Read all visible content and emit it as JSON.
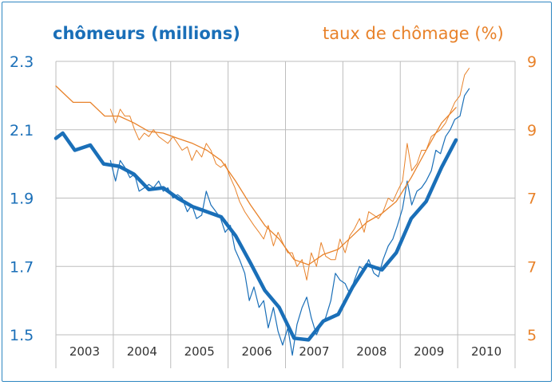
{
  "chart_data": {
    "type": "line",
    "title_left": "chômeurs (millions)",
    "title_right": "taux de chômage (%)",
    "x_tick_labels": [
      "2003",
      "2004",
      "2005",
      "2006",
      "2007",
      "2008",
      "2009",
      "2010"
    ],
    "y_left_ticks": [
      "2.3",
      "2.1",
      "1.9",
      "1.7",
      "1.5"
    ],
    "y_right_ticks": [
      "9",
      "9",
      "7",
      "7",
      "5"
    ],
    "ylim_left": [
      1.5,
      2.3
    ],
    "xlim": [
      2003.0,
      2011.0
    ],
    "grid": true,
    "colors": {
      "left_axis": "#1a6fb8",
      "right_axis": "#e8822a",
      "frame": "#2e86c1"
    },
    "series": [
      {
        "axis": "left",
        "color": "#1a6fb8",
        "width": 4.5,
        "x": [
          2003.0,
          2003.12,
          2003.33,
          2003.6,
          2003.83,
          2004.1,
          2004.36,
          2004.62,
          2004.87,
          2005.12,
          2005.38,
          2005.63,
          2005.88,
          2006.13,
          2006.39,
          2006.64,
          2006.89,
          2007.15,
          2007.4,
          2007.66,
          2007.92,
          2008.17,
          2008.42,
          2008.68,
          2008.93,
          2009.19,
          2009.45,
          2009.72,
          2009.97
        ],
        "values": [
          2.075,
          2.09,
          2.04,
          2.055,
          2.0,
          1.993,
          1.97,
          1.925,
          1.93,
          1.9,
          1.875,
          1.86,
          1.845,
          1.79,
          1.71,
          1.63,
          1.58,
          1.49,
          1.485,
          1.54,
          1.56,
          1.64,
          1.705,
          1.69,
          1.74,
          1.84,
          1.89,
          1.99,
          2.07
        ]
      },
      {
        "axis": "left",
        "color": "#1a6fb8",
        "width": 1.2,
        "x": [
          2003.95,
          2004.04,
          2004.12,
          2004.2,
          2004.29,
          2004.37,
          2004.45,
          2004.54,
          2004.62,
          2004.7,
          2004.79,
          2004.87,
          2004.95,
          2005.04,
          2005.12,
          2005.2,
          2005.29,
          2005.37,
          2005.45,
          2005.54,
          2005.62,
          2005.7,
          2005.79,
          2005.87,
          2005.95,
          2006.04,
          2006.12,
          2006.2,
          2006.29,
          2006.37,
          2006.45,
          2006.54,
          2006.62,
          2006.7,
          2006.79,
          2006.87,
          2006.95,
          2007.04,
          2007.12,
          2007.2,
          2007.29,
          2007.37,
          2007.45,
          2007.54,
          2007.62,
          2007.7,
          2007.79,
          2007.87,
          2007.95,
          2008.04,
          2008.12,
          2008.2,
          2008.29,
          2008.37,
          2008.45,
          2008.54,
          2008.62,
          2008.7,
          2008.79,
          2008.87,
          2008.95,
          2009.04,
          2009.12,
          2009.2,
          2009.29,
          2009.37,
          2009.45,
          2009.54,
          2009.62,
          2009.7,
          2009.79,
          2009.87,
          2009.95,
          2010.04,
          2010.12,
          2010.2
        ],
        "values": [
          2.01,
          1.95,
          2.01,
          1.99,
          1.96,
          1.97,
          1.92,
          1.93,
          1.94,
          1.93,
          1.95,
          1.92,
          1.93,
          1.9,
          1.91,
          1.9,
          1.86,
          1.88,
          1.84,
          1.85,
          1.92,
          1.88,
          1.86,
          1.84,
          1.8,
          1.82,
          1.75,
          1.72,
          1.68,
          1.6,
          1.64,
          1.58,
          1.6,
          1.52,
          1.58,
          1.51,
          1.47,
          1.52,
          1.44,
          1.53,
          1.58,
          1.61,
          1.55,
          1.5,
          1.53,
          1.55,
          1.6,
          1.68,
          1.66,
          1.65,
          1.62,
          1.66,
          1.7,
          1.69,
          1.72,
          1.68,
          1.67,
          1.72,
          1.76,
          1.78,
          1.82,
          1.87,
          1.95,
          1.88,
          1.92,
          1.93,
          1.95,
          1.98,
          2.04,
          2.03,
          2.08,
          2.1,
          2.13,
          2.14,
          2.2,
          2.22
        ]
      },
      {
        "axis": "right",
        "color": "#e8822a",
        "width": 1.3,
        "x": [
          2003.0,
          2003.3,
          2003.6,
          2003.85,
          2004.1,
          2004.36,
          2004.62,
          2004.87,
          2005.12,
          2005.38,
          2005.63,
          2005.88,
          2006.13,
          2006.39,
          2006.64,
          2006.89,
          2007.15,
          2007.4,
          2007.66,
          2007.92,
          2008.17,
          2008.42,
          2008.68,
          2008.93,
          2009.19,
          2009.45,
          2009.72,
          2009.97
        ],
        "values": [
          2.228,
          2.18,
          2.18,
          2.14,
          2.14,
          2.12,
          2.095,
          2.09,
          2.075,
          2.06,
          2.04,
          2.01,
          1.95,
          1.88,
          1.82,
          1.78,
          1.72,
          1.705,
          1.735,
          1.75,
          1.79,
          1.83,
          1.855,
          1.89,
          1.96,
          2.04,
          2.12,
          2.165
        ]
      },
      {
        "axis": "right",
        "color": "#e8822a",
        "width": 1.0,
        "x": [
          2003.95,
          2004.04,
          2004.12,
          2004.2,
          2004.29,
          2004.37,
          2004.45,
          2004.54,
          2004.62,
          2004.7,
          2004.79,
          2004.87,
          2004.95,
          2005.04,
          2005.12,
          2005.2,
          2005.29,
          2005.37,
          2005.45,
          2005.54,
          2005.62,
          2005.7,
          2005.79,
          2005.87,
          2005.95,
          2006.04,
          2006.12,
          2006.2,
          2006.29,
          2006.37,
          2006.45,
          2006.54,
          2006.62,
          2006.7,
          2006.79,
          2006.87,
          2006.95,
          2007.04,
          2007.12,
          2007.2,
          2007.29,
          2007.37,
          2007.45,
          2007.54,
          2007.62,
          2007.7,
          2007.79,
          2007.87,
          2007.95,
          2008.04,
          2008.12,
          2008.2,
          2008.29,
          2008.37,
          2008.45,
          2008.54,
          2008.62,
          2008.7,
          2008.79,
          2008.87,
          2008.95,
          2009.04,
          2009.12,
          2009.2,
          2009.29,
          2009.37,
          2009.45,
          2009.54,
          2009.62,
          2009.7,
          2009.79,
          2009.87,
          2009.95,
          2010.04,
          2010.12,
          2010.2
        ],
        "values": [
          2.16,
          2.12,
          2.16,
          2.14,
          2.14,
          2.1,
          2.07,
          2.09,
          2.08,
          2.1,
          2.08,
          2.07,
          2.06,
          2.08,
          2.06,
          2.04,
          2.05,
          2.01,
          2.04,
          2.02,
          2.06,
          2.04,
          2.0,
          1.99,
          2.0,
          1.96,
          1.93,
          1.89,
          1.86,
          1.84,
          1.82,
          1.8,
          1.78,
          1.82,
          1.76,
          1.8,
          1.77,
          1.74,
          1.74,
          1.7,
          1.72,
          1.66,
          1.74,
          1.7,
          1.77,
          1.73,
          1.72,
          1.72,
          1.78,
          1.74,
          1.79,
          1.81,
          1.84,
          1.8,
          1.86,
          1.85,
          1.84,
          1.86,
          1.9,
          1.89,
          1.92,
          1.95,
          2.06,
          1.98,
          2.0,
          2.04,
          2.04,
          2.08,
          2.09,
          2.1,
          2.12,
          2.15,
          2.18,
          2.2,
          2.26,
          2.28
        ]
      }
    ]
  }
}
